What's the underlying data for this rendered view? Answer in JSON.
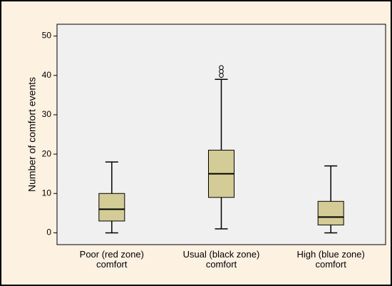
{
  "chart_data": {
    "type": "box",
    "y_label": "Number of comfort events",
    "categories": [
      "Poor (red zone) comfort",
      "Usual (black zone) comfort",
      "High (blue zone) comfort"
    ],
    "color": "#d4cc96",
    "ylim": [
      -3,
      53
    ],
    "yticks": [
      0,
      10,
      20,
      30,
      40,
      50
    ],
    "boxes": [
      {
        "min": 0,
        "q1": 3,
        "median": 6,
        "q3": 10,
        "max": 18,
        "outliers": []
      },
      {
        "min": 1,
        "q1": 9,
        "median": 15,
        "q3": 21,
        "max": 39,
        "outliers": [
          40,
          41,
          42
        ]
      },
      {
        "min": 0,
        "q1": 2,
        "median": 4,
        "q3": 8,
        "max": 17,
        "outliers": []
      }
    ]
  }
}
